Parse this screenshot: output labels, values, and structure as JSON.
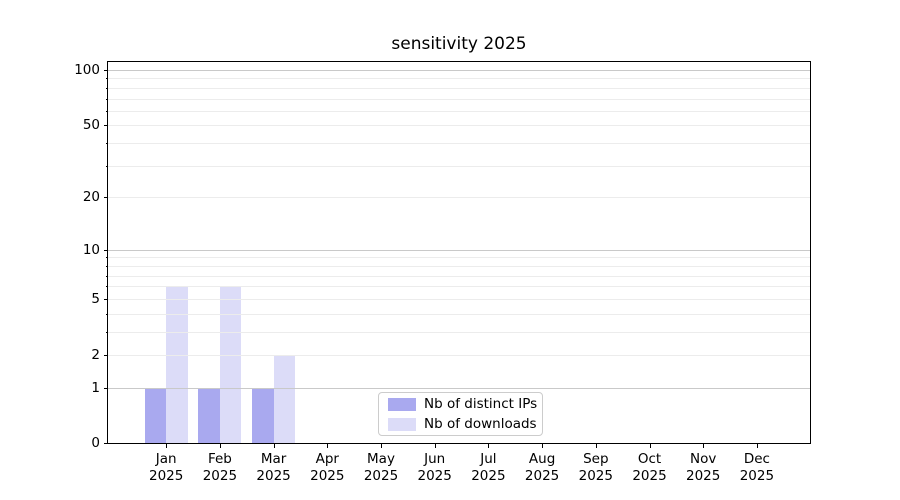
{
  "chart_data": {
    "type": "bar",
    "title": "sensitivity 2025",
    "categories": [
      "Jan",
      "Feb",
      "Mar",
      "Apr",
      "May",
      "Jun",
      "Jul",
      "Aug",
      "Sep",
      "Oct",
      "Nov",
      "Dec"
    ],
    "category_year": "2025",
    "series": [
      {
        "name": "Nb of distinct IPs",
        "color": "#a9a9ef",
        "values": [
          1,
          1,
          1,
          0,
          0,
          0,
          0,
          0,
          0,
          0,
          0,
          0
        ]
      },
      {
        "name": "Nb of downloads",
        "color": "#dcdcf8",
        "values": [
          6,
          6,
          2,
          0,
          0,
          0,
          0,
          0,
          0,
          0,
          0,
          0
        ]
      }
    ],
    "y_axis": {
      "scale": "log1p",
      "tick_labels": [
        0,
        1,
        2,
        5,
        10,
        20,
        50,
        100
      ],
      "major_gridlines": [
        1,
        10,
        100
      ],
      "minor_gridlines": [
        2,
        3,
        4,
        5,
        6,
        7,
        8,
        9,
        20,
        30,
        40,
        50,
        60,
        70,
        80,
        90
      ],
      "range_top_value": 112
    },
    "x_axis": {
      "tick_count": 12
    },
    "grid": true,
    "legend": {
      "position": "lower center"
    },
    "colors": {
      "major_grid": "#c9c9c9",
      "minor_grid": "#ececec",
      "spine": "#000000"
    }
  }
}
